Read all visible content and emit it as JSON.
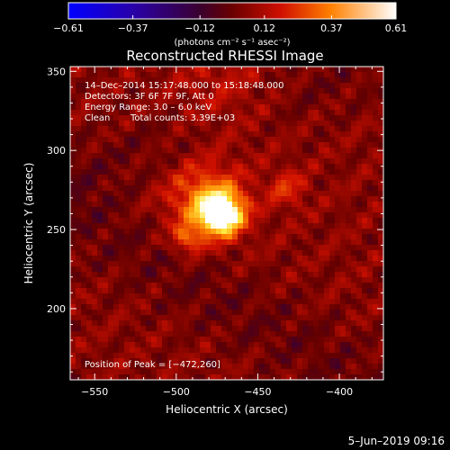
{
  "chart_data": {
    "type": "heatmap",
    "title": "Reconstructed RHESSI Image",
    "xlabel": "Heliocentric X (arcsec)",
    "ylabel": "Heliocentric Y (arcsec)",
    "xlim": [
      -565,
      -373
    ],
    "ylim": [
      155,
      353
    ],
    "xticks": [
      -550,
      -500,
      -450,
      -400
    ],
    "yticks": [
      200,
      250,
      300,
      350
    ],
    "xtick_labels": [
      "−550",
      "−500",
      "−450",
      "−400"
    ],
    "ytick_labels": [
      "200",
      "250",
      "300",
      "350"
    ],
    "colorbar": {
      "min": -0.61,
      "max": 0.61,
      "ticks": [
        -0.61,
        -0.37,
        -0.12,
        0.12,
        0.37,
        0.61
      ],
      "tick_labels": [
        "−0.61",
        "−0.37",
        "−0.12",
        "0.12",
        "0.37",
        "0.61"
      ],
      "units_label": "(photons cm⁻² s⁻¹ asec⁻²)"
    },
    "annotations": {
      "time_range": "14–Dec–2014 15:17:48.000 to 15:18:48.000",
      "detectors": "Detectors: 3F 6F 7F 9F, Att 0",
      "energy": "Energy Range: 3.0 – 6.0 keV",
      "method": "Clean",
      "counts": "Total counts: 3.39E+03",
      "peak": "Position of Peak = [−472,260]"
    },
    "peak_position": [
      -472,
      260
    ],
    "sources": [
      {
        "x": -472,
        "y": 260,
        "amp": 0.61,
        "sigma": 9
      },
      {
        "x": -482,
        "y": 268,
        "amp": 0.3,
        "sigma": 16
      },
      {
        "x": -493,
        "y": 244,
        "amp": 0.22,
        "sigma": 6
      },
      {
        "x": -432,
        "y": 276,
        "amp": 0.16,
        "sigma": 8
      },
      {
        "x": -470,
        "y": 335,
        "amp": 0.1,
        "sigma": 22
      }
    ]
  },
  "footer": {
    "date": "5–Jun–2019 09:16"
  }
}
